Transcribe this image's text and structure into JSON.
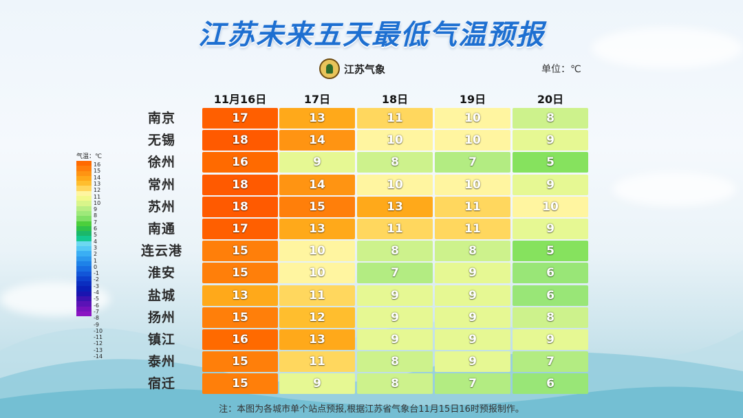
{
  "title": "江苏未来五天最低气温预报",
  "logo_text": "江苏气象",
  "unit_label": "单位：℃",
  "columns": [
    "11月16日",
    "17日",
    "18日",
    "19日",
    "20日"
  ],
  "rows": [
    {
      "city": "南京",
      "values": [
        17,
        13,
        11,
        10,
        8
      ]
    },
    {
      "city": "无锡",
      "values": [
        18,
        14,
        10,
        10,
        9
      ]
    },
    {
      "city": "徐州",
      "values": [
        16,
        9,
        8,
        7,
        5
      ]
    },
    {
      "city": "常州",
      "values": [
        18,
        14,
        10,
        10,
        9
      ]
    },
    {
      "city": "苏州",
      "values": [
        18,
        15,
        13,
        11,
        10
      ]
    },
    {
      "city": "南通",
      "values": [
        17,
        13,
        11,
        11,
        9
      ]
    },
    {
      "city": "连云港",
      "values": [
        15,
        10,
        8,
        8,
        5
      ]
    },
    {
      "city": "淮安",
      "values": [
        15,
        10,
        7,
        9,
        6
      ]
    },
    {
      "city": "盐城",
      "values": [
        13,
        11,
        9,
        9,
        6
      ]
    },
    {
      "city": "扬州",
      "values": [
        15,
        12,
        9,
        9,
        8
      ]
    },
    {
      "city": "镇江",
      "values": [
        16,
        13,
        9,
        9,
        9
      ]
    },
    {
      "city": "泰州",
      "values": [
        15,
        11,
        8,
        9,
        7
      ]
    },
    {
      "city": "宿迁",
      "values": [
        15,
        9,
        8,
        7,
        6
      ]
    }
  ],
  "legend": {
    "title": "气温：℃",
    "labels": [
      "16",
      "15",
      "14",
      "13",
      "12",
      "11",
      "10",
      "9",
      "8",
      "7",
      "6",
      "5",
      "4",
      "3",
      "2",
      "1",
      "0",
      "-1",
      "-2",
      "-3",
      "-4",
      "-5",
      "-6",
      "-7",
      "-8",
      "-9",
      "-10",
      "-11",
      "-12",
      "-13",
      "-14"
    ],
    "colors": [
      "#ff6a00",
      "#ff7f0a",
      "#ff9412",
      "#ffa91a",
      "#ffbe2e",
      "#ffd75e",
      "#fff5a0",
      "#f2f98c",
      "#d9f58a",
      "#b9ee84",
      "#9ee97a",
      "#7fe066",
      "#4ccf3c",
      "#2fc24a",
      "#1bb86a",
      "#14c890",
      "#6cd8f0",
      "#55c8f5",
      "#3aaef4",
      "#2c98ee",
      "#1e82e8",
      "#186de2",
      "#1256d8",
      "#0d40cc",
      "#0a2ec0",
      "#0a1fb6",
      "#1a14b0",
      "#3c12b0",
      "#5a12b6",
      "#7612bc",
      "#8a14c2"
    ]
  },
  "note": "注：本图为各城市单个站点预报,根据江苏省气象台11月15日16时预报制作。"
}
